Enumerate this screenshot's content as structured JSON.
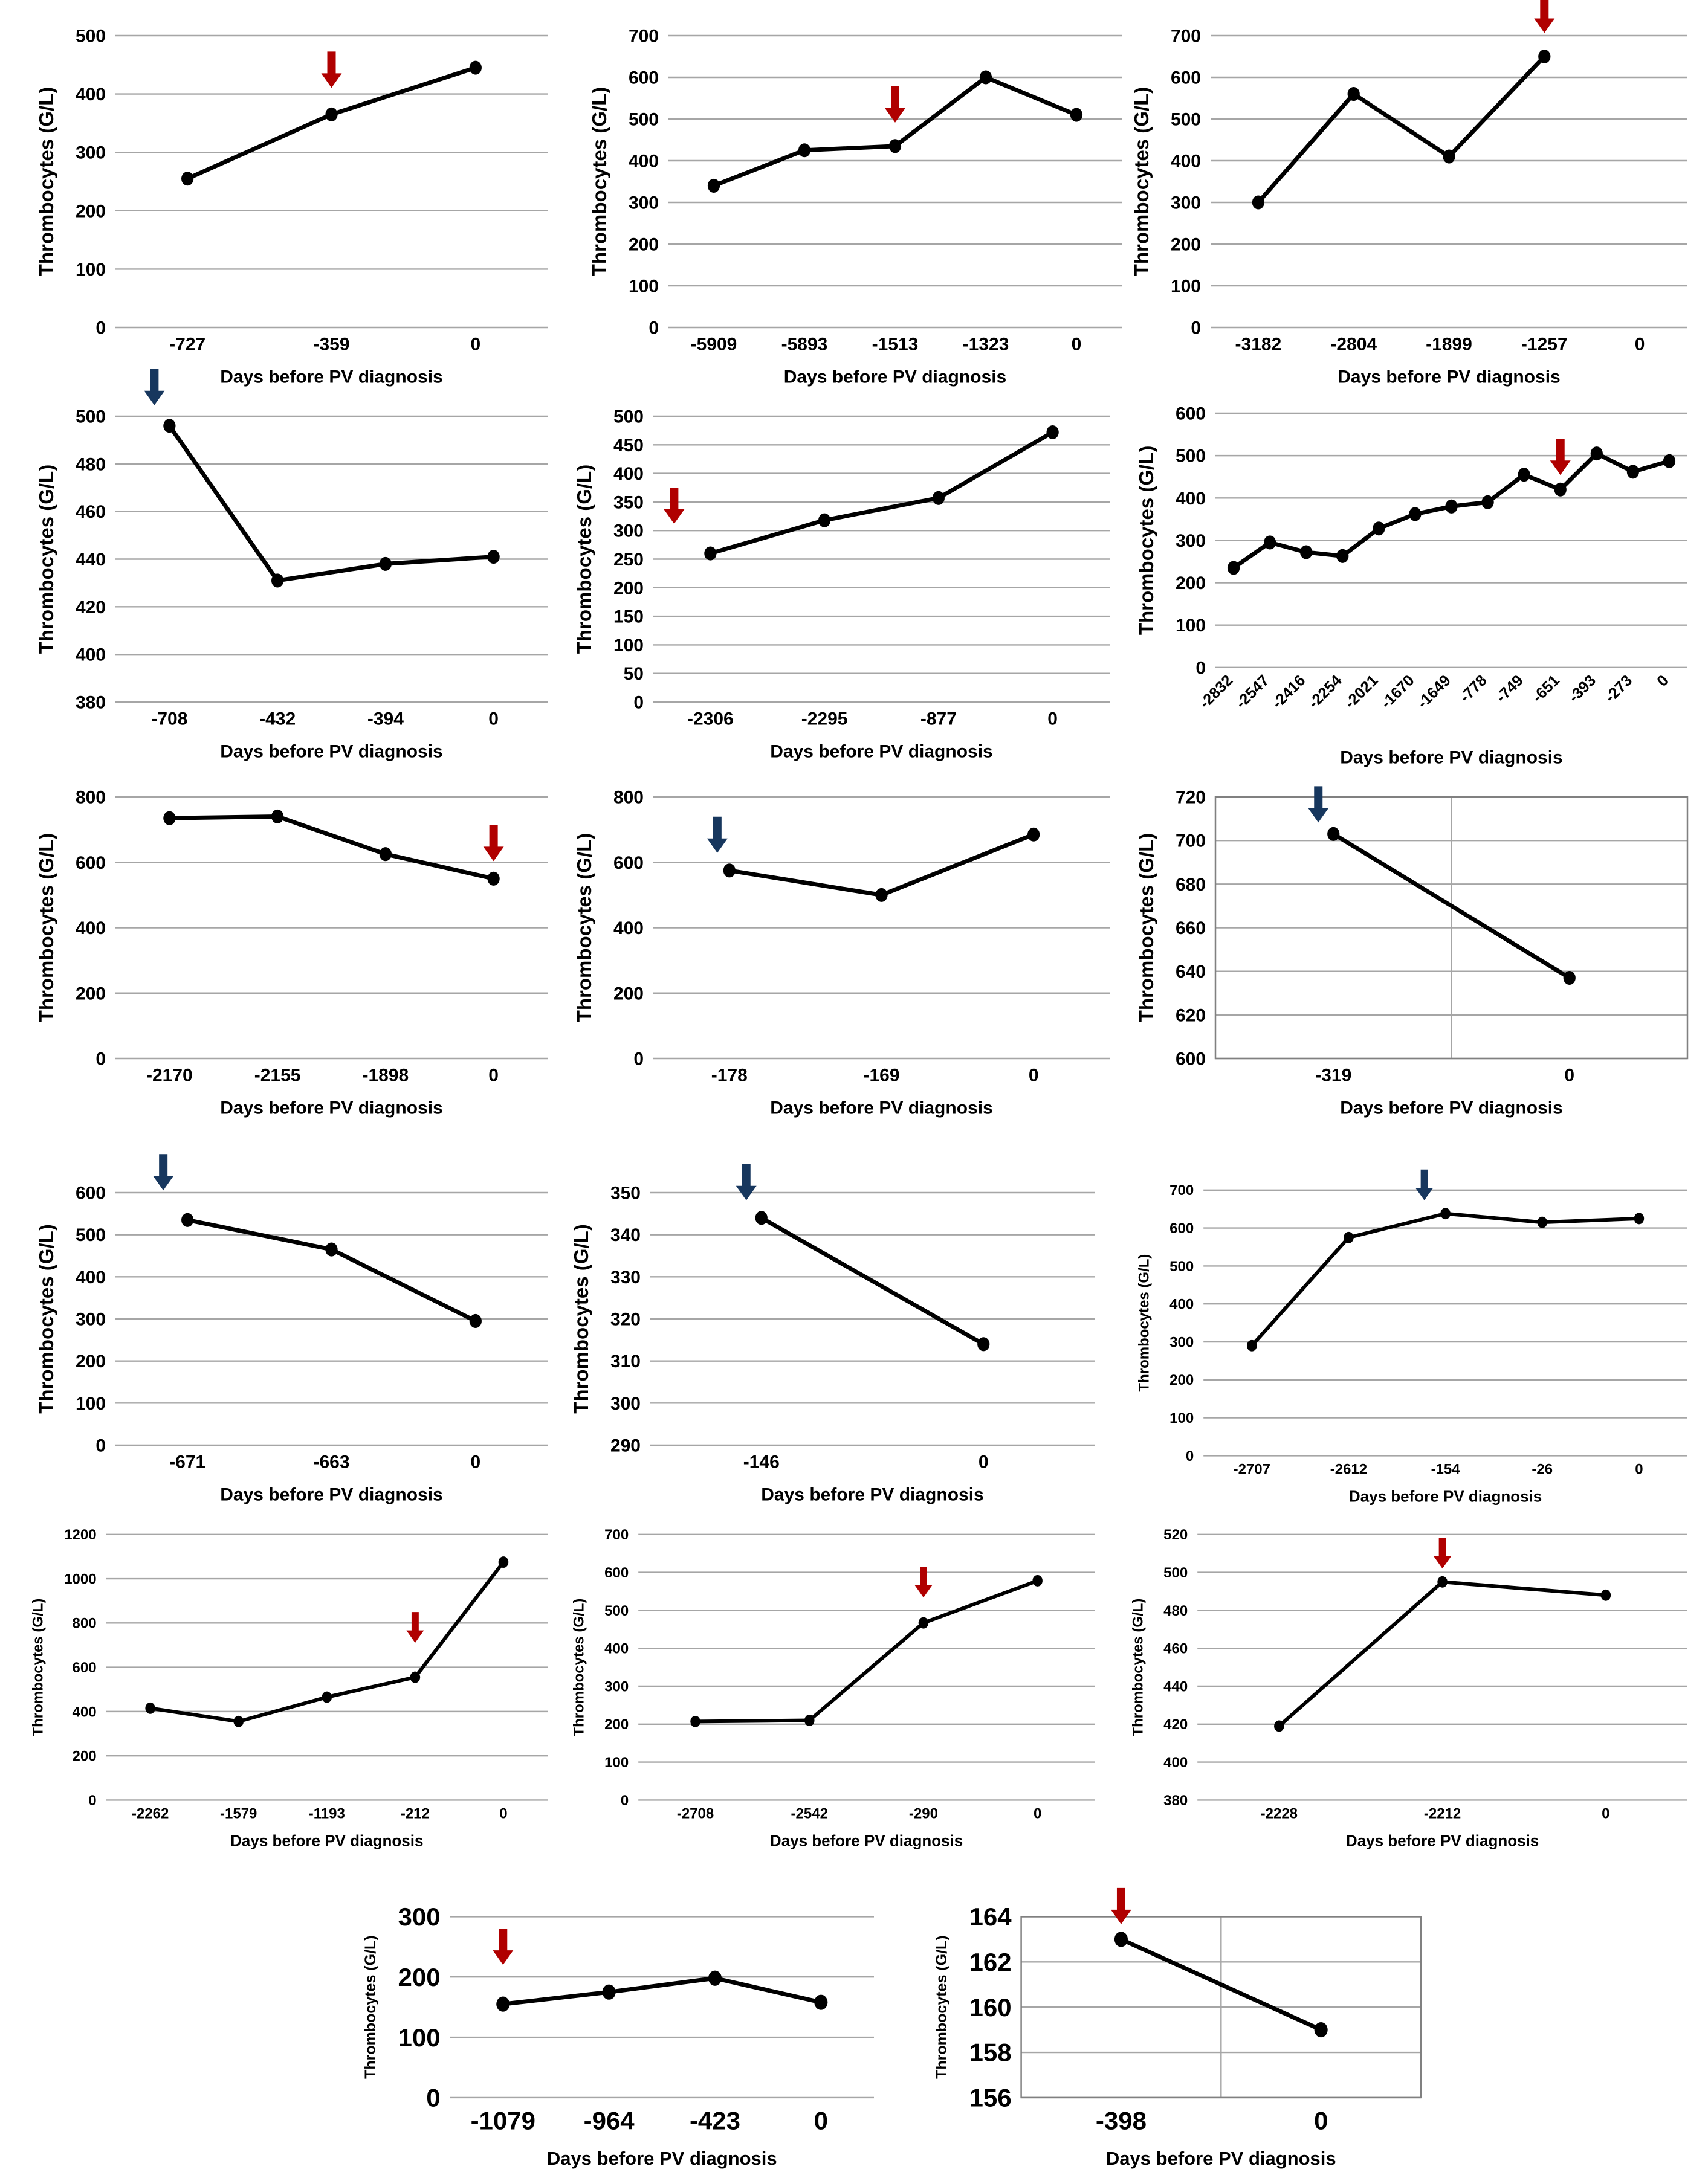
{
  "figure": {
    "title": "",
    "shared_xlabel": "Days before PV diagnosis",
    "shared_ylabel": "Thrombocytes (G/L)",
    "arrow_colors": {
      "red": "#b00000",
      "navy": "#17375e"
    },
    "gridline_color": "#a6a6a6",
    "series_color": "#000000"
  },
  "chart_data": [
    {
      "type": "line",
      "ylabel": "Thrombocytes (G/L)",
      "xlabel": "Days before PV diagnosis",
      "categories": [
        "-727",
        "-359",
        "0"
      ],
      "values": [
        255,
        365,
        445
      ],
      "ylim": [
        0,
        500
      ],
      "ystep": 100,
      "grid": true,
      "arrow": {
        "color": "red",
        "index": 1
      }
    },
    {
      "type": "line",
      "ylabel": "Thrombocytes (G/L)",
      "xlabel": "Days before PV diagnosis",
      "categories": [
        "-5909",
        "-5893",
        "-1513",
        "-1323",
        "0"
      ],
      "values": [
        340,
        425,
        435,
        600,
        510
      ],
      "ylim": [
        0,
        700
      ],
      "ystep": 100,
      "grid": true,
      "arrow": {
        "color": "red",
        "index": 2
      }
    },
    {
      "type": "line",
      "ylabel": "Thrombocytes (G/L)",
      "xlabel": "Days before PV diagnosis",
      "categories": [
        "-3182",
        "-2804",
        "-1899",
        "-1257",
        "0"
      ],
      "values": [
        300,
        560,
        410,
        650,
        null
      ],
      "ylim": [
        0,
        700
      ],
      "ystep": 100,
      "grid": true,
      "arrow": {
        "color": "red",
        "index": 3
      }
    },
    {
      "type": "line",
      "ylabel": "Thrombocytes (G/L)",
      "xlabel": "Days before PV diagnosis",
      "categories": [
        "-708",
        "-432",
        "-394",
        "0"
      ],
      "values": [
        496,
        431,
        438,
        441
      ],
      "ylim": [
        380,
        500
      ],
      "ystep": 20,
      "grid": true,
      "arrow": {
        "color": "navy",
        "index": 0
      }
    },
    {
      "type": "line",
      "ylabel": "Thrombocytes (G/L)",
      "xlabel": "Days before PV diagnosis",
      "categories": [
        "-2306",
        "-2295",
        "-877",
        "0"
      ],
      "values": [
        260,
        318,
        357,
        472
      ],
      "ylim": [
        0,
        500
      ],
      "ystep": 50,
      "grid": true,
      "arrow": {
        "color": "red",
        "index": 0
      }
    },
    {
      "type": "line",
      "ylabel": "Thrombocytes (G/L)",
      "xlabel": "Days before PV diagnosis",
      "categories": [
        "-2832",
        "-2547",
        "-2416",
        "-2254",
        "-2021",
        "-1670",
        "-1649",
        "-778",
        "-749",
        "-651",
        "-393",
        "-273",
        "0"
      ],
      "values": [
        235,
        295,
        272,
        263,
        328,
        362,
        380,
        390,
        455,
        420,
        505,
        462,
        487
      ],
      "ylim": [
        0,
        600
      ],
      "ystep": 100,
      "grid": true,
      "rotate_labels": true,
      "arrow": {
        "color": "red",
        "index": 9
      }
    },
    {
      "type": "line",
      "ylabel": "Thrombocytes (G/L)",
      "xlabel": "Days before PV diagnosis",
      "categories": [
        "-2170",
        "-2155",
        "-1898",
        "0"
      ],
      "values": [
        735,
        740,
        625,
        550
      ],
      "ylim": [
        0,
        800
      ],
      "ystep": 200,
      "grid": true,
      "arrow": {
        "color": "red",
        "index": 3
      }
    },
    {
      "type": "line",
      "ylabel": "Thrombocytes (G/L)",
      "xlabel": "Days before PV diagnosis",
      "categories": [
        "-178",
        "-169",
        "0"
      ],
      "values": [
        575,
        500,
        685
      ],
      "ylim": [
        0,
        800
      ],
      "ystep": 200,
      "grid": true,
      "arrow": {
        "color": "navy",
        "index": 0
      }
    },
    {
      "type": "line",
      "ylabel": "Thrombocytes (G/L)",
      "xlabel": "Days before PV diagnosis",
      "categories": [
        "-319",
        "0"
      ],
      "values": [
        703,
        637
      ],
      "ylim": [
        600,
        720
      ],
      "ystep": 20,
      "grid": true,
      "boxed": true,
      "arrow": {
        "color": "navy",
        "index": 0
      }
    },
    {
      "type": "line",
      "ylabel": "Thrombocytes (G/L)",
      "xlabel": "Days before PV diagnosis",
      "categories": [
        "-671",
        "-663",
        "0"
      ],
      "values": [
        535,
        465,
        295
      ],
      "ylim": [
        0,
        600
      ],
      "ystep": 100,
      "grid": true,
      "arrow": {
        "color": "navy",
        "index": 0
      }
    },
    {
      "type": "line",
      "ylabel": "Thrombocytes (G/L)",
      "xlabel": "Days before PV diagnosis",
      "categories": [
        "-146",
        "0"
      ],
      "values": [
        344,
        314
      ],
      "ylim": [
        290,
        350
      ],
      "ystep": 10,
      "grid": true,
      "arrow": {
        "color": "navy",
        "index": 0
      }
    },
    {
      "type": "line",
      "ylabel": "Thrombocytes (G/L)",
      "xlabel": "Days before PV diagnosis",
      "categories": [
        "-2707",
        "-2612",
        "-154",
        "-26",
        "0"
      ],
      "values": [
        290,
        575,
        638,
        615,
        625
      ],
      "ylim": [
        0,
        700
      ],
      "ystep": 100,
      "grid": true,
      "arrow": {
        "color": "navy",
        "index": 2
      }
    },
    {
      "type": "line",
      "ylabel": "Thrombocytes (G/L)",
      "xlabel": "Days before PV diagnosis",
      "categories": [
        "-2262",
        "-1579",
        "-1193",
        "-212",
        "0"
      ],
      "values": [
        415,
        355,
        465,
        555,
        1075
      ],
      "ylim": [
        0,
        1200
      ],
      "ystep": 200,
      "grid": true,
      "arrow": {
        "color": "red",
        "index": 3
      }
    },
    {
      "type": "line",
      "ylabel": "Thrombocytes (G/L)",
      "xlabel": "Days before PV diagnosis",
      "categories": [
        "-2708",
        "-2542",
        "-290",
        "0"
      ],
      "values": [
        207,
        210,
        467,
        578
      ],
      "ylim": [
        0,
        700
      ],
      "ystep": 100,
      "grid": true,
      "arrow": {
        "color": "red",
        "index": 2
      }
    },
    {
      "type": "line",
      "ylabel": "Thrombocytes (G/L)",
      "xlabel": "Days before PV diagnosis",
      "categories": [
        "-2228",
        "-2212",
        "0"
      ],
      "values": [
        419,
        495,
        488
      ],
      "ylim": [
        380,
        520
      ],
      "ystep": 20,
      "grid": true,
      "arrow": {
        "color": "red",
        "index": 1
      }
    },
    {
      "type": "line",
      "ylabel": "Thrombocytes (G/L)",
      "xlabel": "Days before PV diagnosis",
      "categories": [
        "-1079",
        "-964",
        "-423",
        "0"
      ],
      "values": [
        155,
        175,
        198,
        158
      ],
      "ylim": [
        0,
        300
      ],
      "ystep": 100,
      "grid": true,
      "arrow": {
        "color": "red",
        "index": 0
      }
    },
    {
      "type": "line",
      "ylabel": "Thrombocytes (G/L)",
      "xlabel": "Days before PV diagnosis",
      "categories": [
        "-398",
        "0"
      ],
      "values": [
        163,
        159
      ],
      "ylim": [
        156,
        164
      ],
      "ystep": 2,
      "grid": true,
      "boxed": true,
      "arrow": {
        "color": "red",
        "index": 0
      }
    }
  ]
}
